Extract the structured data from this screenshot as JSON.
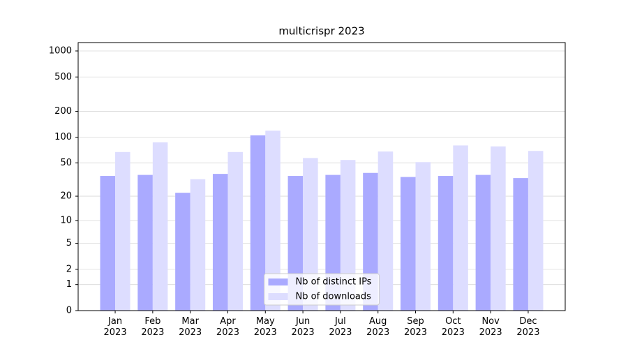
{
  "chart_data": {
    "type": "bar",
    "title": "multicrispr 2023",
    "categories": [
      "Jan\n2023",
      "Feb\n2023",
      "Mar\n2023",
      "Apr\n2023",
      "May\n2023",
      "Jun\n2023",
      "Jul\n2023",
      "Aug\n2023",
      "Sep\n2023",
      "Oct\n2023",
      "Nov\n2023",
      "Dec\n2023"
    ],
    "series": [
      {
        "name": "Nb of distinct IPs",
        "color": "#aaaaff",
        "values": [
          35,
          36,
          22,
          37,
          105,
          35,
          36,
          38,
          34,
          35,
          36,
          33
        ]
      },
      {
        "name": "Nb of downloads",
        "color": "#ddddff",
        "values": [
          67,
          87,
          32,
          67,
          119,
          57,
          54,
          68,
          51,
          80,
          78,
          69
        ]
      }
    ],
    "yscale": "log1p",
    "ylim": [
      0,
      1250
    ],
    "yticks": [
      0,
      1,
      2,
      5,
      10,
      20,
      50,
      100,
      200,
      500,
      1000
    ],
    "grid": true,
    "legend": "lower center"
  }
}
